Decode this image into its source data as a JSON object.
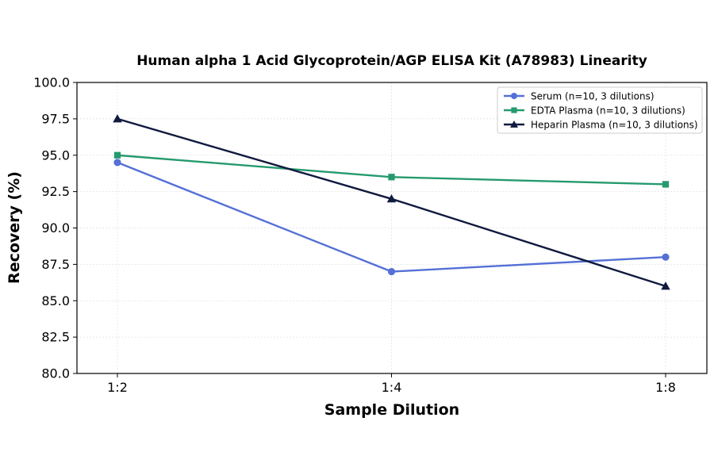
{
  "chart_data": {
    "type": "line",
    "title": "Human alpha 1 Acid Glycoprotein/AGP ELISA Kit (A78983) Linearity",
    "xlabel": "Sample Dilution",
    "ylabel": "Recovery (%)",
    "categories": [
      "1:2",
      "1:4",
      "1:8"
    ],
    "ylim": [
      80.0,
      100.0
    ],
    "yticks": [
      "80.0",
      "82.5",
      "85.0",
      "87.5",
      "90.0",
      "92.5",
      "95.0",
      "97.5",
      "100.0"
    ],
    "grid": true,
    "legend_position": "top-right",
    "series": [
      {
        "name": "Serum (n=10, 3 dilutions)",
        "values": [
          94.5,
          87.0,
          88.0
        ],
        "color": "#5470d6",
        "marker": "circle"
      },
      {
        "name": "EDTA Plasma (n=10, 3 dilutions)",
        "values": [
          95.0,
          93.5,
          93.0
        ],
        "color": "#259a6e",
        "marker": "square"
      },
      {
        "name": "Heparin Plasma (n=10, 3 dilutions)",
        "values": [
          97.5,
          92.0,
          86.0
        ],
        "color": "#0f1a3e",
        "marker": "triangle"
      }
    ]
  }
}
